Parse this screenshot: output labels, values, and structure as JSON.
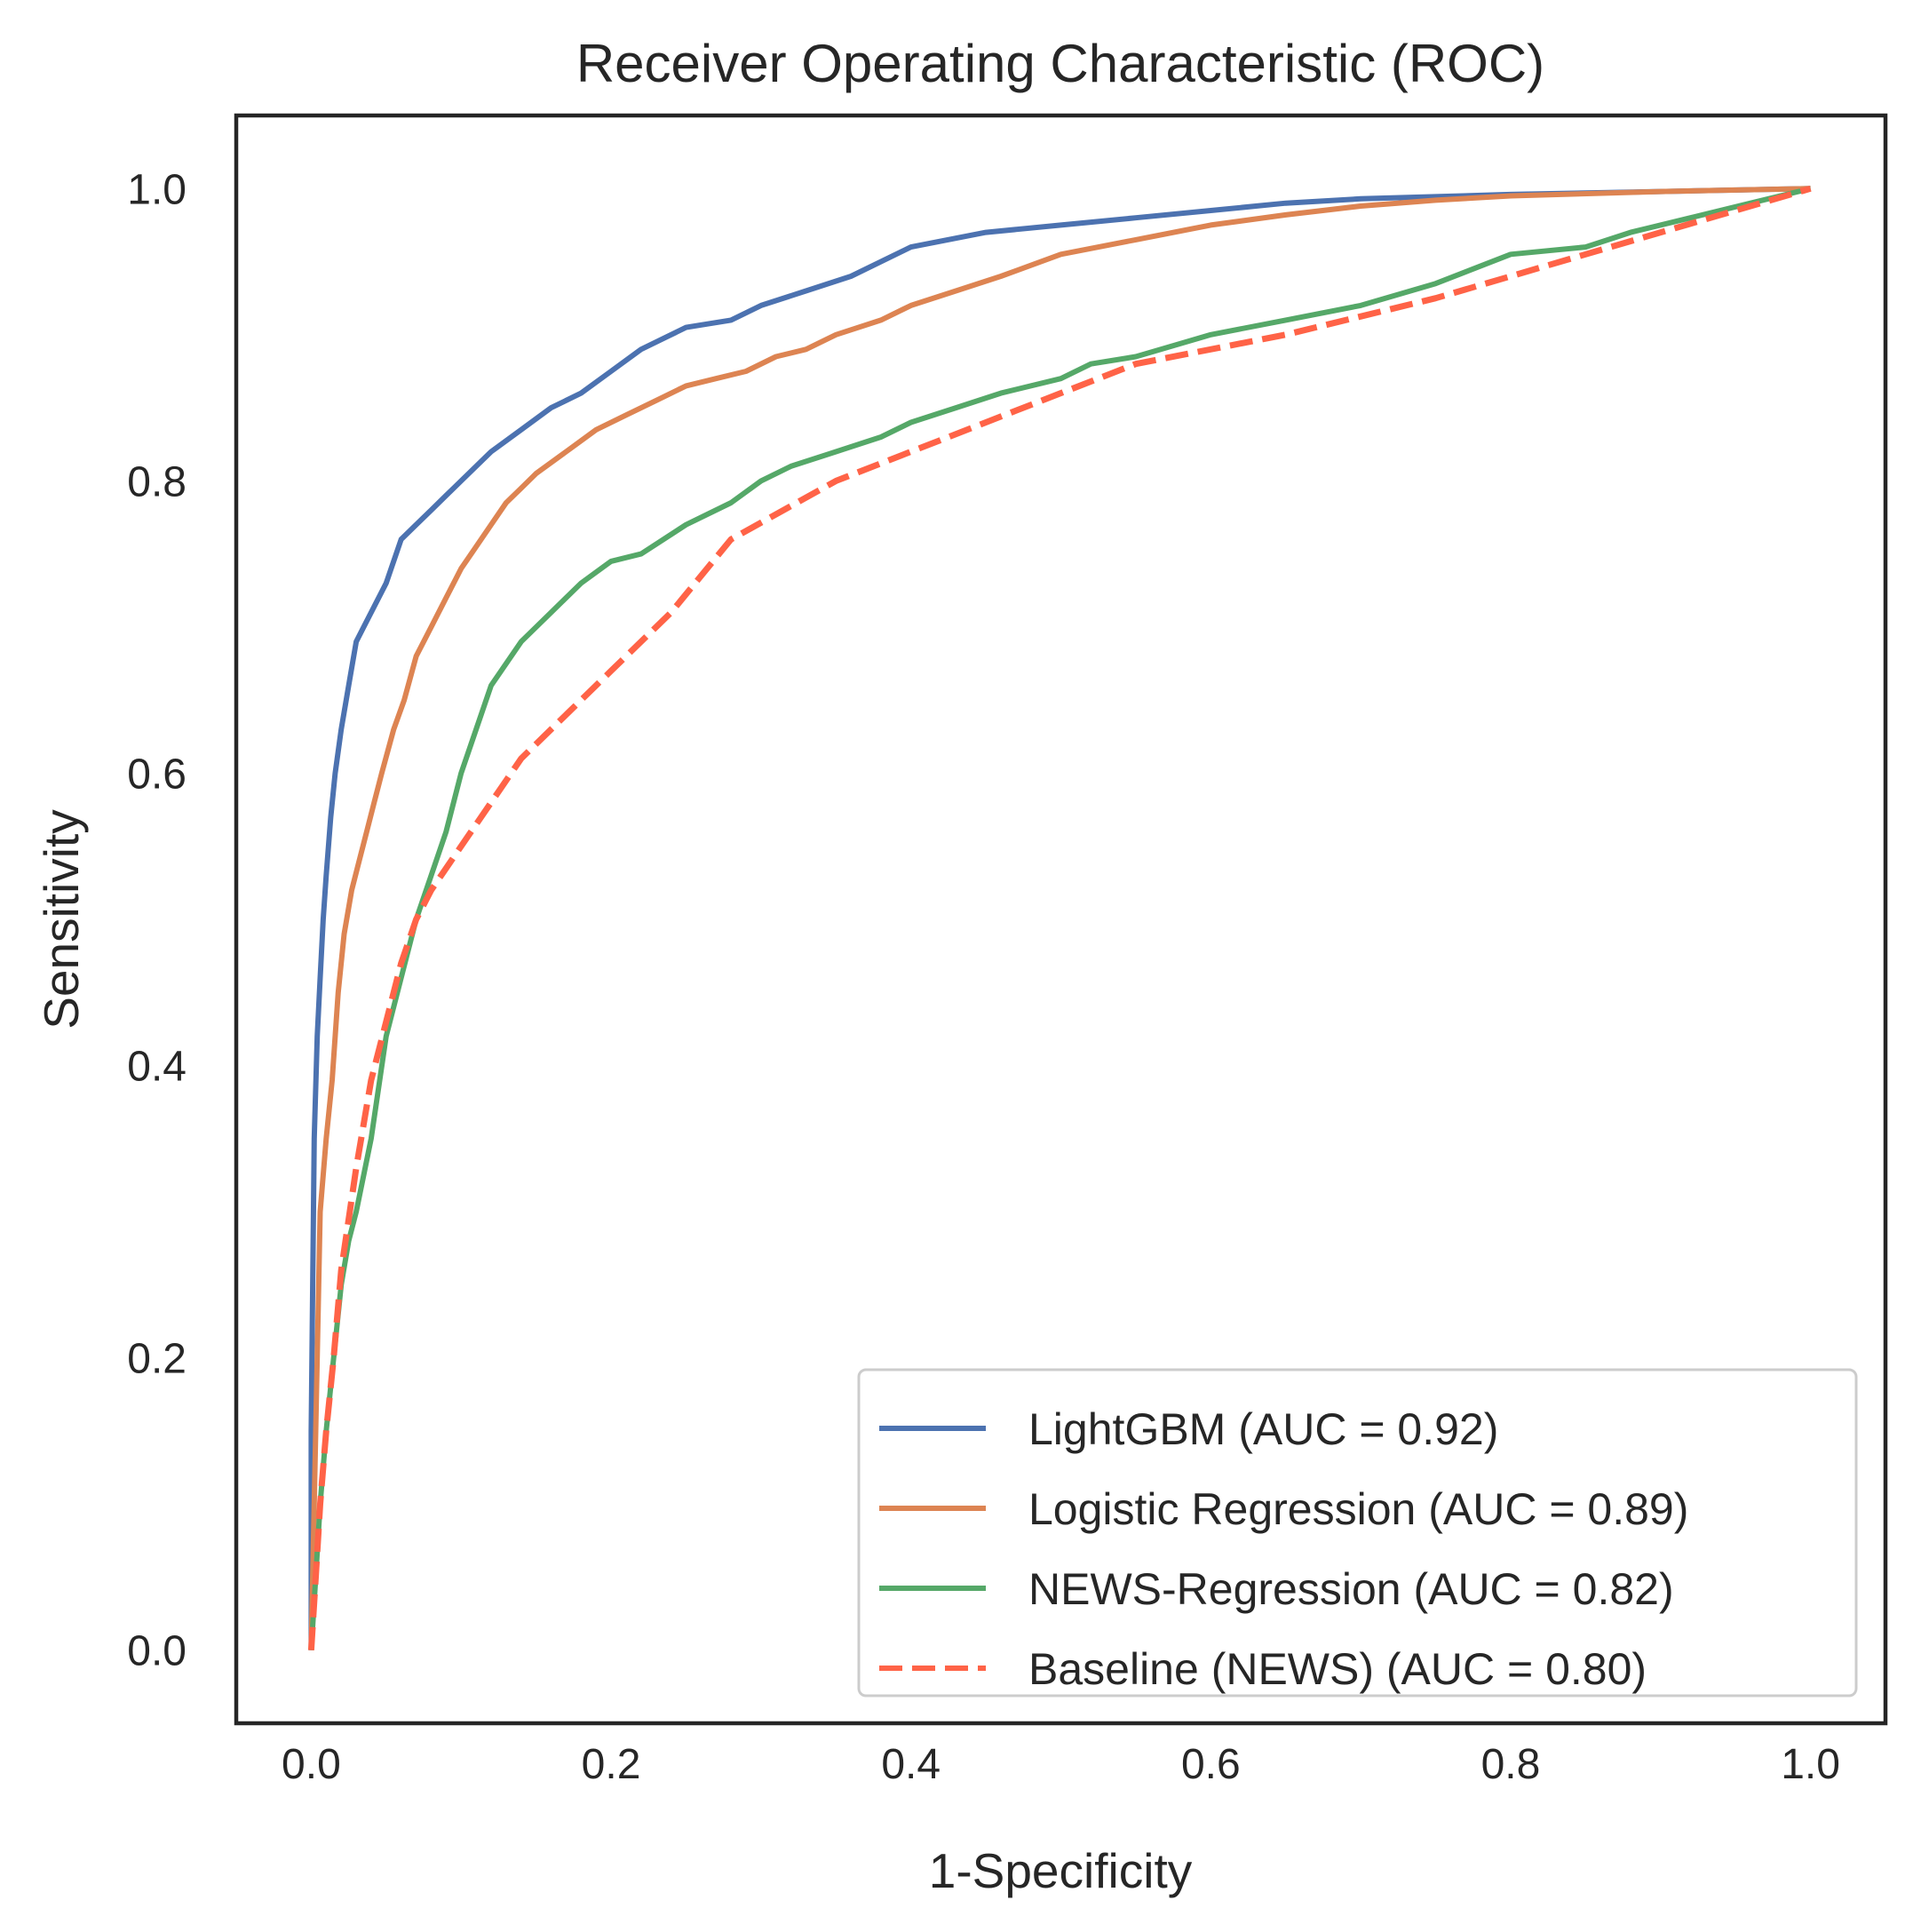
{
  "chart_data": {
    "type": "line",
    "title": "Receiver Operating Characteristic (ROC)",
    "xlabel": "1-Specificity",
    "ylabel": "Sensitivity",
    "xlim": [
      -0.05,
      1.05
    ],
    "ylim": [
      -0.05,
      1.05
    ],
    "xticks": [
      "0.0",
      "0.2",
      "0.4",
      "0.6",
      "0.8",
      "1.0"
    ],
    "yticks": [
      "0.0",
      "0.2",
      "0.4",
      "0.6",
      "0.8",
      "1.0"
    ],
    "grid": false,
    "legend_position": "lower right",
    "series": [
      {
        "name": "LightGBM (AUC = 0.92)",
        "color": "#4c72b0",
        "dash": "solid",
        "x": [
          0.0,
          0.0,
          0.002,
          0.004,
          0.006,
          0.008,
          0.01,
          0.013,
          0.016,
          0.02,
          0.025,
          0.03,
          0.035,
          0.04,
          0.05,
          0.06,
          0.07,
          0.08,
          0.09,
          0.1,
          0.12,
          0.14,
          0.16,
          0.18,
          0.2,
          0.22,
          0.25,
          0.28,
          0.3,
          0.33,
          0.36,
          0.4,
          0.45,
          0.5,
          0.55,
          0.6,
          0.65,
          0.7,
          0.8,
          0.9,
          1.0
        ],
        "y": [
          0.0,
          0.15,
          0.35,
          0.42,
          0.46,
          0.5,
          0.53,
          0.57,
          0.6,
          0.63,
          0.66,
          0.69,
          0.7,
          0.71,
          0.73,
          0.76,
          0.77,
          0.78,
          0.79,
          0.8,
          0.82,
          0.835,
          0.85,
          0.86,
          0.875,
          0.89,
          0.905,
          0.91,
          0.92,
          0.93,
          0.94,
          0.96,
          0.97,
          0.975,
          0.98,
          0.985,
          0.99,
          0.993,
          0.996,
          0.998,
          1.0
        ]
      },
      {
        "name": "Logistic Regression (AUC = 0.89)",
        "color": "#dd8452",
        "dash": "solid",
        "x": [
          0.0,
          0.003,
          0.006,
          0.01,
          0.014,
          0.018,
          0.022,
          0.027,
          0.032,
          0.037,
          0.042,
          0.047,
          0.055,
          0.062,
          0.07,
          0.08,
          0.09,
          0.1,
          0.11,
          0.12,
          0.13,
          0.14,
          0.15,
          0.17,
          0.19,
          0.21,
          0.23,
          0.25,
          0.27,
          0.29,
          0.31,
          0.33,
          0.35,
          0.38,
          0.4,
          0.43,
          0.46,
          0.5,
          0.55,
          0.6,
          0.65,
          0.7,
          0.75,
          0.8,
          0.9,
          1.0
        ],
        "y": [
          0.0,
          0.15,
          0.3,
          0.35,
          0.39,
          0.45,
          0.49,
          0.52,
          0.54,
          0.56,
          0.58,
          0.6,
          0.63,
          0.65,
          0.68,
          0.7,
          0.72,
          0.74,
          0.755,
          0.77,
          0.785,
          0.795,
          0.805,
          0.82,
          0.835,
          0.845,
          0.855,
          0.865,
          0.87,
          0.875,
          0.885,
          0.89,
          0.9,
          0.91,
          0.92,
          0.93,
          0.94,
          0.955,
          0.965,
          0.975,
          0.982,
          0.988,
          0.992,
          0.995,
          0.998,
          1.0
        ]
      },
      {
        "name": "NEWS-Regression (AUC = 0.82)",
        "color": "#55a868",
        "dash": "solid",
        "x": [
          0.0,
          0.003,
          0.006,
          0.01,
          0.015,
          0.02,
          0.025,
          0.03,
          0.04,
          0.05,
          0.06,
          0.07,
          0.08,
          0.09,
          0.1,
          0.11,
          0.12,
          0.14,
          0.16,
          0.18,
          0.2,
          0.22,
          0.25,
          0.28,
          0.3,
          0.32,
          0.35,
          0.38,
          0.4,
          0.43,
          0.46,
          0.5,
          0.52,
          0.55,
          0.6,
          0.65,
          0.7,
          0.75,
          0.8,
          0.85,
          0.88,
          0.92,
          0.96,
          1.0
        ],
        "y": [
          0.0,
          0.05,
          0.1,
          0.15,
          0.2,
          0.25,
          0.28,
          0.3,
          0.35,
          0.42,
          0.46,
          0.5,
          0.53,
          0.56,
          0.6,
          0.63,
          0.66,
          0.69,
          0.71,
          0.73,
          0.745,
          0.75,
          0.77,
          0.785,
          0.8,
          0.81,
          0.82,
          0.83,
          0.84,
          0.85,
          0.86,
          0.87,
          0.88,
          0.885,
          0.9,
          0.91,
          0.92,
          0.935,
          0.955,
          0.96,
          0.97,
          0.98,
          0.99,
          1.0
        ]
      },
      {
        "name": "Baseline (NEWS) (AUC = 0.80)",
        "color": "#ff6347",
        "dash": "dashed",
        "x": [
          0.0,
          0.003,
          0.006,
          0.01,
          0.015,
          0.02,
          0.03,
          0.04,
          0.05,
          0.06,
          0.07,
          0.08,
          0.1,
          0.12,
          0.14,
          0.17,
          0.2,
          0.24,
          0.28,
          0.35,
          0.45,
          0.55,
          0.65,
          0.75,
          0.85,
          0.95,
          1.0
        ],
        "y": [
          0.0,
          0.05,
          0.1,
          0.15,
          0.2,
          0.26,
          0.33,
          0.39,
          0.43,
          0.47,
          0.5,
          0.52,
          0.55,
          0.58,
          0.61,
          0.64,
          0.67,
          0.71,
          0.76,
          0.8,
          0.84,
          0.88,
          0.9,
          0.925,
          0.955,
          0.985,
          1.0
        ]
      }
    ]
  }
}
